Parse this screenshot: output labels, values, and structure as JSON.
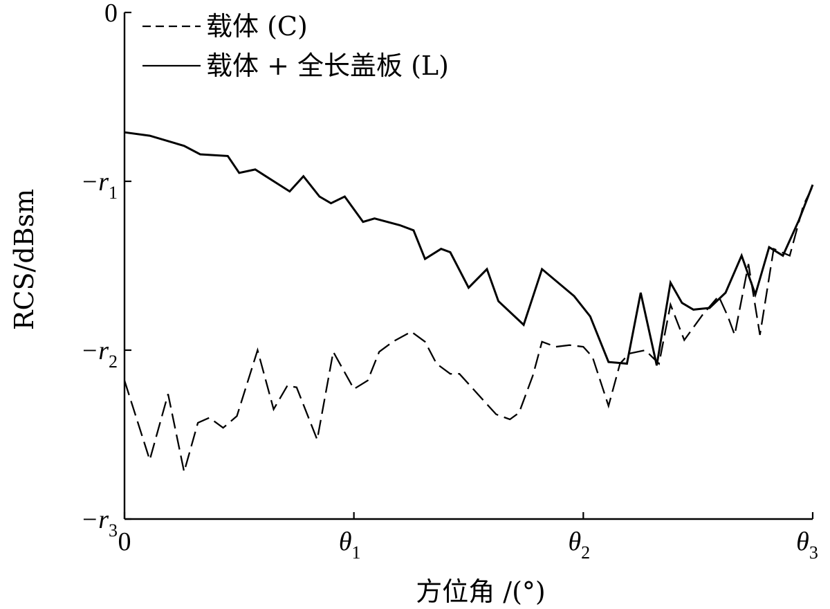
{
  "chart_data": {
    "type": "line",
    "title": "",
    "xlabel": "方位角 /(°)",
    "ylabel": "RCS/dBsm",
    "x_ticks": [
      {
        "main": "0",
        "sub": ""
      },
      {
        "main": "θ",
        "sub": "1"
      },
      {
        "main": "θ",
        "sub": "2"
      },
      {
        "main": "θ",
        "sub": "3"
      }
    ],
    "y_ticks": [
      {
        "main": "0",
        "sub": ""
      },
      {
        "main": "−r",
        "sub": "1"
      },
      {
        "main": "−r",
        "sub": "2"
      },
      {
        "main": "−r",
        "sub": "3"
      }
    ],
    "xlim": [
      0,
      3
    ],
    "ylim": [
      -3,
      0
    ],
    "grid": false,
    "legend_position": "top-left",
    "series": [
      {
        "name": "载体 (C)",
        "style": "dashed",
        "color": "#000000",
        "points": [
          [
            0.0,
            -2.18
          ],
          [
            0.11,
            -2.65
          ],
          [
            0.19,
            -2.26
          ],
          [
            0.26,
            -2.72
          ],
          [
            0.32,
            -2.43
          ],
          [
            0.37,
            -2.4
          ],
          [
            0.43,
            -2.46
          ],
          [
            0.49,
            -2.39
          ],
          [
            0.58,
            -2.0
          ],
          [
            0.65,
            -2.35
          ],
          [
            0.71,
            -2.21
          ],
          [
            0.75,
            -2.22
          ],
          [
            0.84,
            -2.53
          ],
          [
            0.91,
            -2.01
          ],
          [
            1.0,
            -2.23
          ],
          [
            1.06,
            -2.18
          ],
          [
            1.11,
            -2.01
          ],
          [
            1.17,
            -1.95
          ],
          [
            1.25,
            -1.89
          ],
          [
            1.31,
            -1.95
          ],
          [
            1.36,
            -2.08
          ],
          [
            1.42,
            -2.14
          ],
          [
            1.46,
            -2.14
          ],
          [
            1.52,
            -2.23
          ],
          [
            1.58,
            -2.32
          ],
          [
            1.62,
            -2.38
          ],
          [
            1.68,
            -2.41
          ],
          [
            1.72,
            -2.37
          ],
          [
            1.78,
            -2.15
          ],
          [
            1.82,
            -1.95
          ],
          [
            1.88,
            -1.98
          ],
          [
            1.94,
            -1.97
          ],
          [
            2.0,
            -1.98
          ],
          [
            2.04,
            -2.04
          ],
          [
            2.11,
            -2.33
          ],
          [
            2.16,
            -2.08
          ],
          [
            2.2,
            -2.02
          ],
          [
            2.27,
            -2.0
          ],
          [
            2.33,
            -2.08
          ],
          [
            2.38,
            -1.73
          ],
          [
            2.44,
            -1.94
          ],
          [
            2.52,
            -1.79
          ],
          [
            2.59,
            -1.68
          ],
          [
            2.63,
            -1.8
          ],
          [
            2.66,
            -1.91
          ],
          [
            2.72,
            -1.49
          ],
          [
            2.77,
            -1.91
          ],
          [
            2.83,
            -1.4
          ],
          [
            2.9,
            -1.44
          ],
          [
            2.96,
            -1.14
          ],
          [
            3.0,
            -1.03
          ]
        ]
      },
      {
        "name": "载体 + 全长盖板 (L)",
        "style": "solid",
        "color": "#000000",
        "points": [
          [
            0.0,
            -0.71
          ],
          [
            0.11,
            -0.73
          ],
          [
            0.26,
            -0.79
          ],
          [
            0.33,
            -0.84
          ],
          [
            0.45,
            -0.85
          ],
          [
            0.5,
            -0.95
          ],
          [
            0.57,
            -0.93
          ],
          [
            0.72,
            -1.06
          ],
          [
            0.78,
            -0.97
          ],
          [
            0.85,
            -1.09
          ],
          [
            0.9,
            -1.13
          ],
          [
            0.96,
            -1.09
          ],
          [
            1.04,
            -1.24
          ],
          [
            1.09,
            -1.22
          ],
          [
            1.2,
            -1.26
          ],
          [
            1.26,
            -1.29
          ],
          [
            1.31,
            -1.46
          ],
          [
            1.38,
            -1.4
          ],
          [
            1.42,
            -1.42
          ],
          [
            1.5,
            -1.63
          ],
          [
            1.58,
            -1.52
          ],
          [
            1.63,
            -1.71
          ],
          [
            1.74,
            -1.85
          ],
          [
            1.82,
            -1.52
          ],
          [
            1.96,
            -1.68
          ],
          [
            2.03,
            -1.8
          ],
          [
            2.11,
            -2.07
          ],
          [
            2.19,
            -2.08
          ],
          [
            2.25,
            -1.66
          ],
          [
            2.32,
            -2.09
          ],
          [
            2.38,
            -1.6
          ],
          [
            2.43,
            -1.72
          ],
          [
            2.48,
            -1.76
          ],
          [
            2.55,
            -1.75
          ],
          [
            2.62,
            -1.66
          ],
          [
            2.69,
            -1.44
          ],
          [
            2.75,
            -1.67
          ],
          [
            2.81,
            -1.39
          ],
          [
            2.87,
            -1.44
          ],
          [
            2.94,
            -1.23
          ],
          [
            3.0,
            -1.02
          ]
        ]
      }
    ]
  }
}
